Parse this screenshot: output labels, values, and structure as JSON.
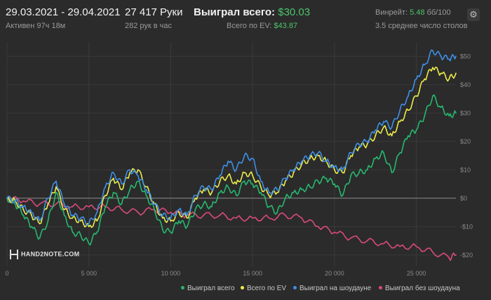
{
  "header": {
    "date_range": "29.03.2021 - 29.04.2021",
    "active_time": "Активен 97ч 18м",
    "hands": "27 417 Руки",
    "hands_per_hour": "282 рук в час",
    "won_total_label": "Выиграл всего:",
    "won_total_value": "$30.03",
    "ev_label": "Всего по EV:",
    "ev_value": "$43.87",
    "winrate_label": "Винрейт:",
    "winrate_value": "5.48",
    "winrate_unit": "бб/100",
    "tables": "3.5 среднее число столов"
  },
  "logo_text": "HAND2NOTE.COM",
  "colors": {
    "won_total": "#27b86f",
    "ev": "#ecec4a",
    "showdown": "#3f8fe6",
    "no_showdown": "#d94a7a",
    "accent": "#4cc46a"
  },
  "chart_data": {
    "type": "line",
    "xlim": [
      0,
      27417
    ],
    "ylim": [
      -24,
      55
    ],
    "x_ticks": [
      0,
      5000,
      10000,
      15000,
      20000,
      25000
    ],
    "x_tick_labels": [
      "0",
      "5 000",
      "10 000",
      "15 000",
      "20 000",
      "25 000"
    ],
    "y_ticks": [
      -20,
      -10,
      0,
      10,
      20,
      30,
      40,
      50
    ],
    "y_tick_labels": [
      "-$20",
      "-$10",
      "$0",
      "$10",
      "$20",
      "$30",
      "$40",
      "$50"
    ],
    "grid": true,
    "legend_position": "bottom-right",
    "series": [
      {
        "name": "Выиграл всего",
        "color_key": "won_total",
        "x": [
          0,
          500,
          1000,
          1500,
          2000,
          2500,
          3000,
          3500,
          4000,
          4500,
          5000,
          5500,
          6000,
          6500,
          7000,
          7500,
          8000,
          8500,
          9000,
          9500,
          10000,
          10500,
          11000,
          11500,
          12000,
          12500,
          13000,
          13500,
          14000,
          14500,
          15000,
          15500,
          16000,
          16500,
          17000,
          17500,
          18000,
          18500,
          19000,
          19500,
          20000,
          20500,
          21000,
          21500,
          22000,
          22500,
          23000,
          23500,
          24000,
          24500,
          25000,
          25500,
          26000,
          26500,
          27000,
          27417
        ],
        "values": [
          0,
          -2,
          -6,
          -10,
          -14,
          -8,
          2,
          -6,
          -12,
          -13,
          -16,
          -12,
          -3,
          2,
          -2,
          3,
          6,
          1,
          -4,
          -11,
          -12,
          -8,
          -10,
          -4,
          -2,
          -3,
          2,
          4,
          1,
          6,
          5,
          2,
          -3,
          -5,
          0,
          2,
          3,
          4,
          6,
          7,
          5,
          1,
          8,
          9,
          10,
          14,
          16,
          9,
          16,
          22,
          24,
          29,
          36,
          32,
          29,
          30
        ]
      },
      {
        "name": "Всего по EV",
        "color_key": "ev",
        "x": [
          0,
          500,
          1000,
          1500,
          2000,
          2500,
          3000,
          3500,
          4000,
          4500,
          5000,
          5500,
          6000,
          6500,
          7000,
          7500,
          8000,
          8500,
          9000,
          9500,
          10000,
          10500,
          11000,
          11500,
          12000,
          12500,
          13000,
          13500,
          14000,
          14500,
          15000,
          15500,
          16000,
          16500,
          17000,
          17500,
          18000,
          18500,
          19000,
          19500,
          20000,
          20500,
          21000,
          21500,
          22000,
          22500,
          23000,
          23500,
          24000,
          24500,
          25000,
          25500,
          26000,
          26500,
          27000,
          27417
        ],
        "values": [
          0,
          -1,
          -4,
          -6,
          -9,
          -2,
          4,
          -4,
          -7,
          -8,
          -10,
          -8,
          1,
          7,
          3,
          9,
          10,
          4,
          -2,
          -7,
          -8,
          -5,
          -7,
          0,
          3,
          2,
          6,
          8,
          5,
          9,
          8,
          4,
          1,
          2,
          6,
          9,
          12,
          14,
          15,
          13,
          10,
          9,
          15,
          18,
          19,
          22,
          25,
          22,
          27,
          31,
          36,
          42,
          46,
          44,
          42,
          44
        ]
      },
      {
        "name": "Выиграл на шоудауне",
        "color_key": "showdown",
        "x": [
          0,
          500,
          1000,
          1500,
          2000,
          2500,
          3000,
          3500,
          4000,
          4500,
          5000,
          5500,
          6000,
          6500,
          7000,
          7500,
          8000,
          8500,
          9000,
          9500,
          10000,
          10500,
          11000,
          11500,
          12000,
          12500,
          13000,
          13500,
          14000,
          14500,
          15000,
          15500,
          16000,
          16500,
          17000,
          17500,
          18000,
          18500,
          19000,
          19500,
          20000,
          20500,
          21000,
          21500,
          22000,
          22500,
          23000,
          23500,
          24000,
          24500,
          25000,
          25500,
          26000,
          26500,
          27000,
          27417
        ],
        "values": [
          0,
          -1,
          -3,
          -5,
          -8,
          0,
          6,
          -2,
          -6,
          -7,
          -9,
          -5,
          4,
          9,
          5,
          10,
          8,
          3,
          -2,
          -6,
          -7,
          -4,
          -6,
          1,
          4,
          3,
          8,
          13,
          10,
          15,
          14,
          6,
          2,
          3,
          7,
          10,
          13,
          15,
          16,
          13,
          11,
          10,
          16,
          19,
          20,
          24,
          27,
          25,
          31,
          36,
          42,
          47,
          52,
          50,
          49,
          50
        ]
      },
      {
        "name": "Выиграл без шоудауна",
        "color_key": "no_showdown",
        "x": [
          0,
          1000,
          2000,
          3000,
          4000,
          5000,
          6000,
          7000,
          8000,
          9000,
          10000,
          11000,
          12000,
          13000,
          14000,
          15000,
          16000,
          17000,
          18000,
          19000,
          20000,
          21000,
          22000,
          23000,
          24000,
          25000,
          26000,
          27000,
          27417
        ],
        "values": [
          0,
          -1,
          -2,
          -2,
          -3,
          -3,
          -3,
          -4,
          -5,
          -4,
          -5,
          -6,
          -6,
          -6,
          -7,
          -7,
          -7,
          -6,
          -7,
          -10,
          -12,
          -14,
          -15,
          -16,
          -17,
          -17,
          -19,
          -21,
          -20
        ]
      }
    ]
  }
}
